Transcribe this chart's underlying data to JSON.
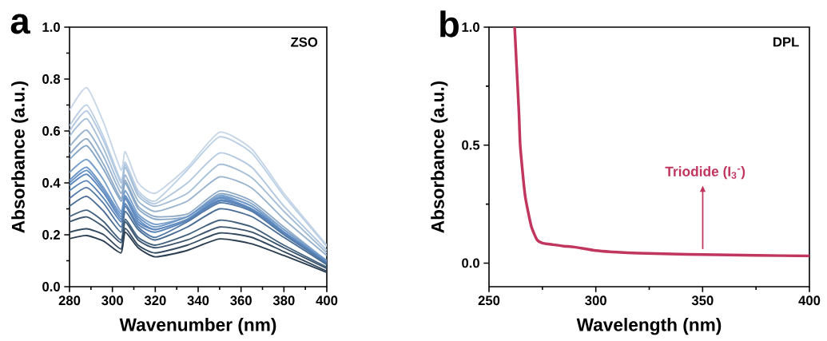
{
  "chart_data": [
    {
      "type": "line",
      "xlabel": "Wavenumber (nm)",
      "ylabel": "Absorbance (a.u.)",
      "annotations": [
        "a",
        "ZSO"
      ],
      "x": [
        280,
        288,
        296,
        304,
        306,
        312,
        320,
        335,
        350,
        365,
        380,
        400
      ],
      "xlim": [
        280,
        400
      ],
      "ylim": [
        0,
        1
      ],
      "xticks": [
        280,
        {
          "value": 290,
          "label": null
        },
        300,
        {
          "value": 310,
          "label": null
        },
        320,
        {
          "value": 330,
          "label": null
        },
        340,
        {
          "value": 350,
          "label": null
        },
        360,
        {
          "value": 370,
          "label": null
        },
        380,
        {
          "value": 390,
          "label": null
        },
        400
      ],
      "yticks": [
        {
          "value": 0,
          "label": "0.0"
        },
        {
          "value": 0.1,
          "label": null
        },
        {
          "value": 0.2,
          "label": "0.2"
        },
        {
          "value": 0.3,
          "label": null
        },
        {
          "value": 0.4,
          "label": "0.4"
        },
        {
          "value": 0.5,
          "label": null
        },
        {
          "value": 0.6,
          "label": "0.6"
        },
        {
          "value": 0.7,
          "label": null
        },
        {
          "value": 0.8,
          "label": "0.8"
        },
        {
          "value": 0.9,
          "label": null
        },
        {
          "value": 1,
          "label": "1.0"
        }
      ],
      "series": [
        {
          "color": "#c6d6e8",
          "values": [
            0.68,
            0.767,
            0.63,
            0.45,
            0.52,
            0.4,
            0.36,
            0.46,
            0.595,
            0.53,
            0.36,
            0.16
          ]
        },
        {
          "color": "#bcd0e5",
          "values": [
            0.62,
            0.7,
            0.575,
            0.41,
            0.48,
            0.37,
            0.33,
            0.45,
            0.577,
            0.515,
            0.35,
            0.155
          ]
        },
        {
          "color": "#b2c8e0",
          "values": [
            0.6,
            0.677,
            0.56,
            0.4,
            0.47,
            0.36,
            0.32,
            0.4,
            0.515,
            0.46,
            0.31,
            0.14
          ]
        },
        {
          "color": "#a6bfd8",
          "values": [
            0.58,
            0.647,
            0.53,
            0.38,
            0.46,
            0.35,
            0.31,
            0.36,
            0.471,
            0.42,
            0.29,
            0.13
          ]
        },
        {
          "color": "#9ab4cf",
          "values": [
            0.54,
            0.603,
            0.5,
            0.36,
            0.43,
            0.33,
            0.29,
            0.33,
            0.423,
            0.38,
            0.26,
            0.12
          ]
        },
        {
          "color": "#90abc8",
          "values": [
            0.51,
            0.57,
            0.47,
            0.34,
            0.41,
            0.31,
            0.27,
            0.28,
            0.369,
            0.33,
            0.23,
            0.1
          ]
        },
        {
          "color": "#86a6c8",
          "values": [
            0.49,
            0.543,
            0.45,
            0.33,
            0.4,
            0.3,
            0.26,
            0.27,
            0.358,
            0.32,
            0.22,
            0.1
          ]
        },
        {
          "color": "#7aa0cc",
          "values": [
            0.44,
            0.49,
            0.41,
            0.29,
            0.37,
            0.28,
            0.24,
            0.27,
            0.351,
            0.31,
            0.22,
            0.1
          ]
        },
        {
          "color": "#6d97c8",
          "values": [
            0.41,
            0.46,
            0.38,
            0.28,
            0.35,
            0.27,
            0.23,
            0.27,
            0.345,
            0.31,
            0.21,
            0.1
          ]
        },
        {
          "color": "#6590c4",
          "values": [
            0.4,
            0.448,
            0.37,
            0.27,
            0.35,
            0.26,
            0.22,
            0.26,
            0.341,
            0.3,
            0.21,
            0.095
          ]
        },
        {
          "color": "#5f8abf",
          "values": [
            0.39,
            0.433,
            0.36,
            0.26,
            0.34,
            0.25,
            0.22,
            0.26,
            0.334,
            0.3,
            0.21,
            0.093
          ]
        },
        {
          "color": "#5a84b8",
          "values": [
            0.37,
            0.408,
            0.34,
            0.25,
            0.32,
            0.24,
            0.21,
            0.255,
            0.33,
            0.295,
            0.205,
            0.09
          ]
        },
        {
          "color": "#5279a8",
          "values": [
            0.34,
            0.382,
            0.32,
            0.23,
            0.31,
            0.23,
            0.19,
            0.25,
            0.323,
            0.29,
            0.2,
            0.09
          ]
        },
        {
          "color": "#4a6d96",
          "values": [
            0.31,
            0.348,
            0.29,
            0.21,
            0.29,
            0.22,
            0.18,
            0.23,
            0.3,
            0.27,
            0.19,
            0.085
          ]
        },
        {
          "color": "#43627f",
          "values": [
            0.27,
            0.295,
            0.25,
            0.18,
            0.26,
            0.19,
            0.16,
            0.2,
            0.256,
            0.23,
            0.16,
            0.075
          ]
        },
        {
          "color": "#3d566f",
          "values": [
            0.25,
            0.269,
            0.23,
            0.17,
            0.25,
            0.18,
            0.15,
            0.18,
            0.23,
            0.21,
            0.15,
            0.07
          ]
        },
        {
          "color": "#344a60",
          "values": [
            0.21,
            0.223,
            0.2,
            0.145,
            0.225,
            0.16,
            0.13,
            0.16,
            0.207,
            0.19,
            0.135,
            0.06
          ]
        },
        {
          "color": "#2c3e52",
          "values": [
            0.185,
            0.197,
            0.175,
            0.13,
            0.21,
            0.15,
            0.115,
            0.14,
            0.184,
            0.165,
            0.12,
            0.055
          ]
        }
      ]
    },
    {
      "type": "line",
      "xlabel": "Wavelength (nm)",
      "ylabel": "Absorbance (a.u.)",
      "annotations": [
        "b",
        "DPL",
        "Triodide (I$_{3}$$^{-}$)"
      ],
      "x": [
        262,
        263,
        264,
        264.6,
        266,
        267,
        268.7,
        270,
        272.4,
        275,
        280,
        285,
        290,
        300,
        310,
        320,
        335,
        350,
        375,
        400
      ],
      "xlim": [
        250,
        400
      ],
      "ylim": [
        -0.1,
        1
      ],
      "xticks": [
        250,
        {
          "value": 275,
          "label": null
        },
        300,
        {
          "value": 325,
          "label": null
        },
        350,
        {
          "value": 375,
          "label": null
        },
        400
      ],
      "yticks": [
        {
          "value": 0,
          "label": "0.0"
        },
        {
          "value": 0.25,
          "label": null
        },
        0.5,
        {
          "value": 0.75,
          "label": null
        },
        {
          "value": 1,
          "label": "1.0"
        }
      ],
      "series": [
        {
          "color": "#c0365e",
          "values": [
            1.0,
            0.82,
            0.64,
            0.5,
            0.36,
            0.28,
            0.2,
            0.15,
            0.1,
            0.085,
            0.078,
            0.072,
            0.068,
            0.053,
            0.046,
            0.042,
            0.039,
            0.036,
            0.033,
            0.03
          ]
        }
      ]
    }
  ]
}
